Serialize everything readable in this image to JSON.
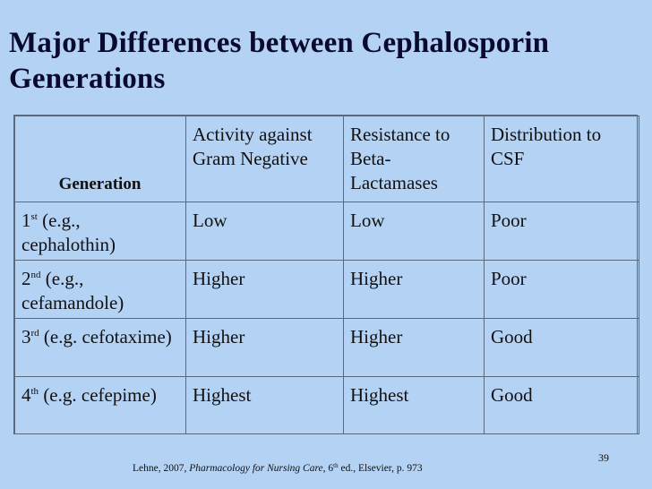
{
  "slide": {
    "title": "Major Differences between Cephalosporin Generations",
    "number": "39"
  },
  "table": {
    "headers": {
      "generation": "Generation",
      "activity": "Activity against Gram Negative",
      "resistance": "Resistance to Beta-Lactamases",
      "distribution": "Distribution to CSF"
    },
    "rows": [
      {
        "ord_num": "1",
        "ord_sup": "st",
        "example": "(e.g., cephalothin)",
        "activity": "Low",
        "resistance": "Low",
        "distribution": "Poor"
      },
      {
        "ord_num": "2",
        "ord_sup": "nd",
        "example": "(e.g., cefamandole)",
        "activity": "Higher",
        "resistance": "Higher",
        "distribution": "Poor"
      },
      {
        "ord_num": "3",
        "ord_sup": "rd",
        "example": "(e.g. cefotaxime)",
        "activity": "Higher",
        "resistance": "Higher",
        "distribution": "Good"
      },
      {
        "ord_num": "4",
        "ord_sup": "th",
        "example": "(e.g. cefepime)",
        "activity": "Highest",
        "resistance": "Highest",
        "distribution": "Good"
      }
    ]
  },
  "citation": {
    "prefix": "Lehne, 2007, ",
    "book": "Pharmacology for Nursing Care,",
    "edition_num": " 6",
    "edition_sup": "th",
    "suffix": " ed., Elsevier, p. 973"
  },
  "colors": {
    "background": "#b4d2f4",
    "title": "#0a0a2e",
    "grid": "#5a6a7a"
  }
}
